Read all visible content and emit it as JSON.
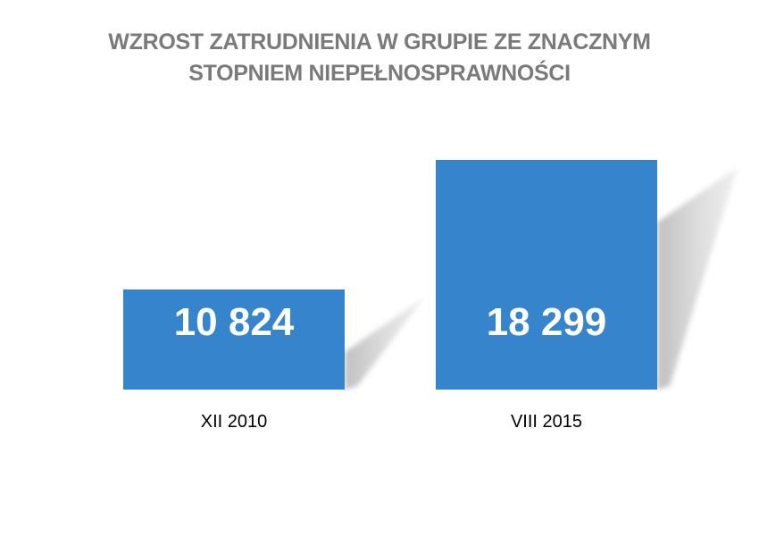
{
  "chart_data": {
    "type": "bar",
    "title": [
      "WZROST ZATRUDNIENIA W GRUPIE ZE ZNACZNYM",
      "STOPNIEM NIEPEŁNOSPRAWNOŚCI"
    ],
    "categories": [
      "XII 2010",
      "VIII 2015"
    ],
    "values": [
      10824,
      18299
    ],
    "value_labels": [
      "10 824",
      "18 299"
    ],
    "xlabel": "",
    "ylabel": "",
    "grid": false,
    "legend": "none",
    "bar_color": "#3584cc",
    "shadow_color": "#c8c8c8",
    "value_label_color": "#ffffff",
    "category_label_color": "#000000",
    "title_color": "#7a7a7a"
  }
}
